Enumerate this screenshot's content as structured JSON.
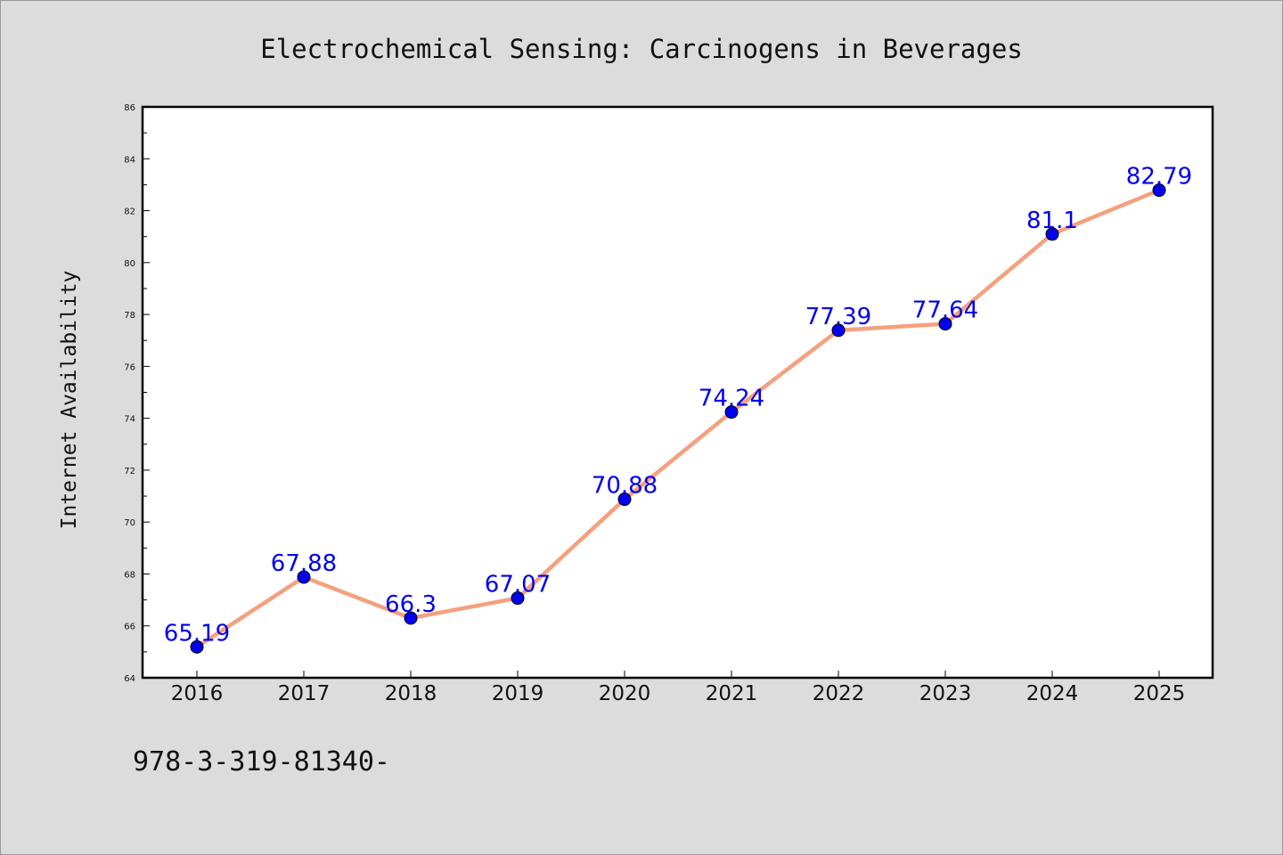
{
  "chart_data": {
    "type": "line",
    "title": "Electrochemical Sensing: Carcinogens in Beverages",
    "xlabel": "",
    "ylabel": "Internet Availability",
    "categories": [
      "2016",
      "2017",
      "2018",
      "2019",
      "2020",
      "2021",
      "2022",
      "2023",
      "2024",
      "2025"
    ],
    "series": [
      {
        "values": [
          65.19,
          67.88,
          66.3,
          67.07,
          70.88,
          74.24,
          77.39,
          77.64,
          81.1,
          82.79
        ],
        "labels": [
          "65.19",
          "67.88",
          "66.3",
          "67.07",
          "70.88",
          "74.24",
          "77.39",
          "77.64",
          "81.1",
          "82.79"
        ],
        "line_color": "#f5a07e",
        "marker_color": "#0000ee",
        "label_color": "#0000ee"
      }
    ],
    "ylim": [
      64,
      86
    ],
    "yticks": [
      "64",
      "66",
      "68",
      "70",
      "72",
      "74",
      "76",
      "78",
      "80",
      "82",
      "84",
      "86"
    ],
    "grid": false,
    "legend": "none"
  },
  "annotation": "978-3-319-81340-"
}
